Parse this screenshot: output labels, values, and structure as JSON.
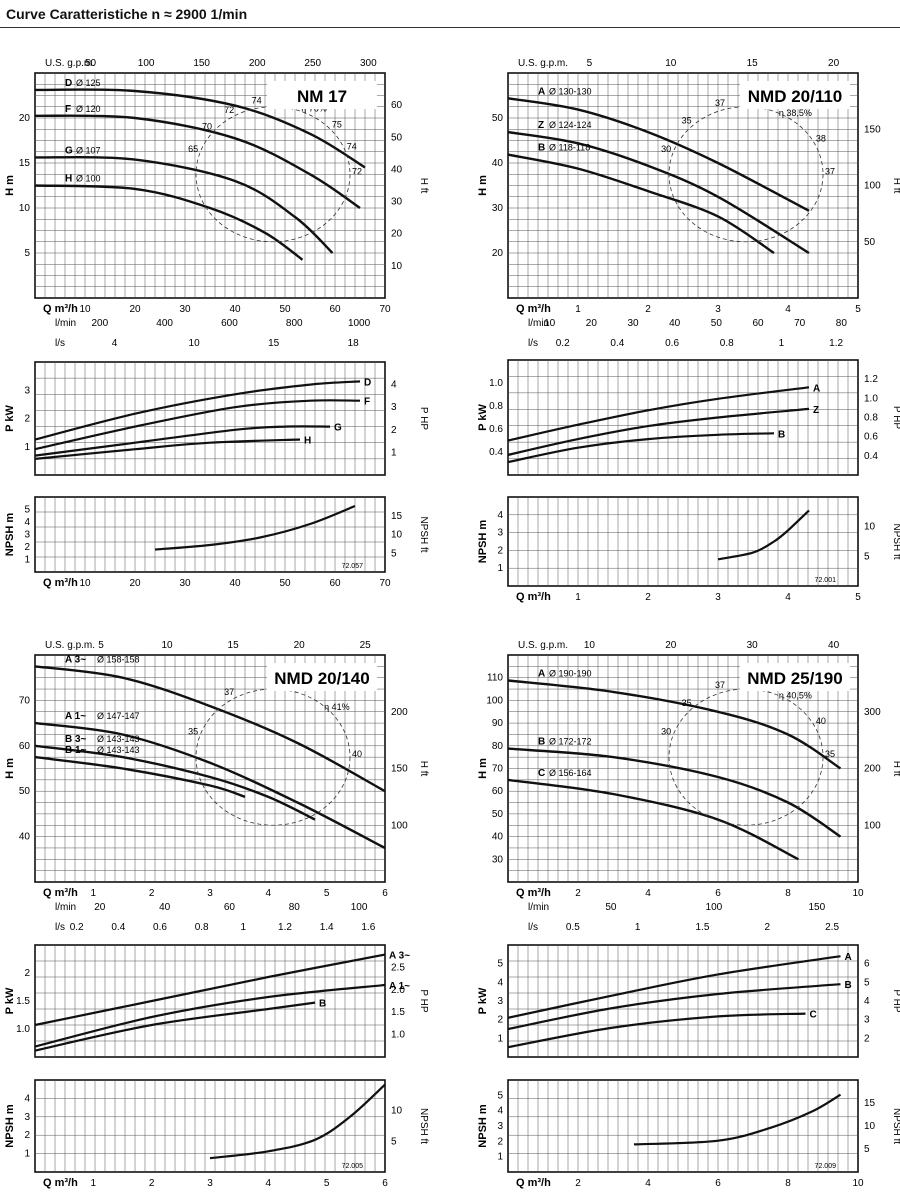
{
  "page": {
    "title": "Curve Caratteristiche n ≈ 2900 1/min"
  },
  "chart_data": [
    {
      "type": "line",
      "model": "NM 17",
      "ref_code": "72.057",
      "units": {
        "q": "Q m³/h",
        "gpm": "U.S. g.p.m.",
        "lmin": "l/min",
        "ls": "l/s",
        "h": "H m",
        "hft": "H ft",
        "p": "P kW",
        "php": "P HP",
        "npsh": "NPSH m",
        "npshft": "NPSH ft"
      },
      "q_ticks": [
        "10",
        "20",
        "30",
        "40",
        "50",
        "60",
        "70"
      ],
      "gpm_ticks": [
        "50",
        "100",
        "150",
        "200",
        "250",
        "300"
      ],
      "lmin_ticks": [
        "200",
        "400",
        "600",
        "800",
        "1000"
      ],
      "ls_ticks": [
        "4",
        "10",
        "15",
        "18"
      ],
      "h_ticks": [
        "5",
        "10",
        "15",
        "20"
      ],
      "hft_ticks": [
        "10",
        "20",
        "30",
        "40",
        "50",
        "60"
      ],
      "p_ticks": [
        "1",
        "2",
        "3"
      ],
      "php_ticks": [
        "1",
        "2",
        "3",
        "4"
      ],
      "npsh_ticks": [
        "1",
        "2",
        "3",
        "4",
        "5"
      ],
      "npshft_ticks": [
        "5",
        "10",
        "15"
      ],
      "xlim": [
        0,
        70
      ],
      "h_ylim": [
        0,
        20
      ],
      "p_ylim": [
        0,
        3.5
      ],
      "npsh_ylim": [
        0,
        5
      ],
      "head_series": [
        {
          "name": "D",
          "label": "Ø 125",
          "points": [
            [
              0,
              18.5
            ],
            [
              20,
              18.4
            ],
            [
              40,
              17.1
            ],
            [
              55,
              14.6
            ],
            [
              66,
              11.6
            ]
          ]
        },
        {
          "name": "F",
          "label": "Ø 120",
          "points": [
            [
              0,
              16.2
            ],
            [
              20,
              16.0
            ],
            [
              40,
              14.2
            ],
            [
              55,
              11.0
            ],
            [
              65,
              8
            ]
          ]
        },
        {
          "name": "G",
          "label": "Ø 107",
          "points": [
            [
              0,
              12.5
            ],
            [
              20,
              12.3
            ],
            [
              40,
              10.4
            ],
            [
              52,
              7.2
            ],
            [
              59.5,
              4
            ]
          ]
        },
        {
          "name": "H",
          "label": "Ø 100",
          "points": [
            [
              0,
              10
            ],
            [
              20,
              9.7
            ],
            [
              35,
              8.0
            ],
            [
              46,
              5.8
            ],
            [
              53.5,
              3.4
            ]
          ]
        }
      ],
      "efficiency_labels": [
        "65",
        "70",
        "72",
        "74",
        "75",
        "η 76%",
        "75",
        "74",
        "72"
      ],
      "power_series": [
        {
          "name": "D",
          "points": [
            [
              0,
              1.1
            ],
            [
              20,
              1.9
            ],
            [
              40,
              2.5
            ],
            [
              55,
              2.8
            ],
            [
              65,
              2.9
            ]
          ]
        },
        {
          "name": "F",
          "points": [
            [
              0,
              0.8
            ],
            [
              20,
              1.5
            ],
            [
              40,
              2.1
            ],
            [
              55,
              2.3
            ],
            [
              65,
              2.3
            ]
          ]
        },
        {
          "name": "G",
          "points": [
            [
              0,
              0.6
            ],
            [
              20,
              1.0
            ],
            [
              40,
              1.4
            ],
            [
              50,
              1.5
            ],
            [
              59,
              1.5
            ]
          ]
        },
        {
          "name": "H",
          "points": [
            [
              0,
              0.5
            ],
            [
              20,
              0.8
            ],
            [
              35,
              1.0
            ],
            [
              53,
              1.1
            ]
          ]
        }
      ],
      "npsh_series": [
        {
          "name": "",
          "points": [
            [
              24,
              1.5
            ],
            [
              35,
              1.8
            ],
            [
              45,
              2.3
            ],
            [
              55,
              3.2
            ],
            [
              64,
              4.4
            ]
          ]
        }
      ]
    },
    {
      "type": "line",
      "model": "NMD 20/110",
      "ref_code": "72.001",
      "units": {
        "q": "Q m³/h",
        "gpm": "U.S. g.p.m.",
        "lmin": "l/min",
        "ls": "l/s",
        "h": "H m",
        "hft": "H ft",
        "p": "P kW",
        "php": "P HP",
        "npsh": "NPSH m",
        "npshft": "NPSH ft"
      },
      "q_ticks": [
        "1",
        "2",
        "3",
        "4",
        "5"
      ],
      "gpm_ticks": [
        "5",
        "10",
        "15",
        "20"
      ],
      "lmin_ticks": [
        "10",
        "20",
        "30",
        "40",
        "50",
        "60",
        "70",
        "80"
      ],
      "ls_ticks": [
        "0.2",
        "0.4",
        "0.6",
        "0.8",
        "1",
        "1.2"
      ],
      "h_ticks": [
        "20",
        "30",
        "40",
        "50"
      ],
      "hft_ticks": [
        "50",
        "100",
        "150"
      ],
      "p_ticks": [
        "0.4",
        "0.6",
        "0.8",
        "1.0"
      ],
      "php_ticks": [
        "0.4",
        "0.6",
        "0.8",
        "1.0",
        "1.2"
      ],
      "npsh_ticks": [
        "1",
        "2",
        "3",
        "4"
      ],
      "npshft_ticks": [
        "5",
        "10"
      ],
      "xlim": [
        0,
        5
      ],
      "h_ylim": [
        10,
        50
      ],
      "p_ylim": [
        0.2,
        1.0
      ],
      "npsh_ylim": [
        0,
        4
      ],
      "head_series": [
        {
          "name": "A",
          "label": "Ø 130-130",
          "points": [
            [
              0,
              45.5
            ],
            [
              1,
              43.5
            ],
            [
              2,
              39.5
            ],
            [
              3,
              34
            ],
            [
              4.3,
              25.5
            ]
          ]
        },
        {
          "name": "Z",
          "label": "Ø 124-124",
          "points": [
            [
              0,
              39.5
            ],
            [
              1,
              37.5
            ],
            [
              2,
              33.5
            ],
            [
              3,
              28
            ],
            [
              4.3,
              18
            ]
          ]
        },
        {
          "name": "B",
          "label": "Ø 118-118",
          "points": [
            [
              0,
              35.5
            ],
            [
              1,
              33
            ],
            [
              2,
              29
            ],
            [
              3,
              24.5
            ],
            [
              3.8,
              18
            ]
          ]
        }
      ],
      "efficiency_labels": [
        "30",
        "35",
        "37",
        "38",
        "η 38,5%",
        "38",
        "37"
      ],
      "power_series": [
        {
          "name": "A",
          "points": [
            [
              0,
              0.44
            ],
            [
              1,
              0.55
            ],
            [
              2,
              0.65
            ],
            [
              3,
              0.73
            ],
            [
              4.3,
              0.81
            ]
          ]
        },
        {
          "name": "Z",
          "points": [
            [
              0,
              0.34
            ],
            [
              1,
              0.45
            ],
            [
              2,
              0.54
            ],
            [
              3,
              0.6
            ],
            [
              4.3,
              0.66
            ]
          ]
        },
        {
          "name": "B",
          "points": [
            [
              0,
              0.29
            ],
            [
              1,
              0.39
            ],
            [
              2,
              0.45
            ],
            [
              3,
              0.48
            ],
            [
              3.8,
              0.49
            ]
          ]
        }
      ],
      "npsh_series": [
        {
          "name": "",
          "points": [
            [
              3,
              1.2
            ],
            [
              3.5,
              1.5
            ],
            [
              3.8,
              2.0
            ],
            [
              4.0,
              2.5
            ],
            [
              4.3,
              3.4
            ]
          ]
        }
      ]
    },
    {
      "type": "line",
      "model": "NMD 20/140",
      "ref_code": "72.005",
      "units": {
        "q": "Q m³/h",
        "gpm": "U.S. g.p.m.",
        "lmin": "l/min",
        "ls": "l/s",
        "h": "H m",
        "hft": "H ft",
        "p": "P kW",
        "php": "P HP",
        "npsh": "NPSH m",
        "npshft": "NPSH ft"
      },
      "q_ticks": [
        "1",
        "2",
        "3",
        "4",
        "5",
        "6"
      ],
      "gpm_ticks": [
        "5",
        "10",
        "15",
        "20",
        "25"
      ],
      "lmin_ticks": [
        "20",
        "40",
        "60",
        "80",
        "100"
      ],
      "ls_ticks": [
        "0.2",
        "0.4",
        "0.6",
        "0.8",
        "1",
        "1.2",
        "1.4",
        "1.6"
      ],
      "h_ticks": [
        "40",
        "50",
        "60",
        "70"
      ],
      "hft_ticks": [
        "100",
        "150",
        "200"
      ],
      "p_ticks": [
        "1.0",
        "1.5",
        "2"
      ],
      "php_ticks": [
        "1.0",
        "1.5",
        "2.0",
        "2.5"
      ],
      "npsh_ticks": [
        "1",
        "2",
        "3",
        "4"
      ],
      "npshft_ticks": [
        "5",
        "10"
      ],
      "xlim": [
        0,
        6
      ],
      "h_ylim": [
        30,
        70
      ],
      "p_ylim": [
        0.6,
        2.0
      ],
      "npsh_ylim": [
        0,
        4
      ],
      "head_series": [
        {
          "name": "A 3~",
          "label": "Ø 158-158",
          "points": [
            [
              0,
              68
            ],
            [
              1.5,
              66
            ],
            [
              3,
              61
            ],
            [
              4.5,
              54.5
            ],
            [
              6,
              46
            ]
          ]
        },
        {
          "name": "A 1~",
          "label": "Ø 147-147",
          "points": [
            [
              0,
              58
            ],
            [
              1.5,
              56
            ],
            [
              3,
              51
            ],
            [
              4.5,
              44
            ],
            [
              6,
              36
            ]
          ]
        },
        {
          "name": "B 3~",
          "label": "Ø 143-143",
          "points": [
            [
              0,
              54
            ],
            [
              1.5,
              52
            ],
            [
              3,
              48.5
            ],
            [
              4,
              45
            ],
            [
              4.8,
              41
            ]
          ]
        },
        {
          "name": "B 1~",
          "label": "Ø 143-143",
          "points": [
            [
              0,
              52
            ],
            [
              1.5,
              50
            ],
            [
              3,
              47
            ],
            [
              3.6,
              45
            ]
          ]
        }
      ],
      "efficiency_labels": [
        "35",
        "37",
        "40",
        "η 41%",
        "40"
      ],
      "power_series": [
        {
          "name": "A 3~",
          "points": [
            [
              0,
              1.0
            ],
            [
              2,
              1.3
            ],
            [
              4,
              1.6
            ],
            [
              6,
              1.88
            ]
          ]
        },
        {
          "name": "A 1~",
          "points": [
            [
              0,
              0.73
            ],
            [
              2,
              1.1
            ],
            [
              4,
              1.35
            ],
            [
              6,
              1.5
            ]
          ]
        },
        {
          "name": "B",
          "points": [
            [
              0,
              0.68
            ],
            [
              2,
              1.0
            ],
            [
              4,
              1.2
            ],
            [
              4.8,
              1.28
            ]
          ]
        }
      ],
      "npsh_series": [
        {
          "name": "",
          "points": [
            [
              3,
              0.6
            ],
            [
              4,
              0.9
            ],
            [
              4.8,
              1.4
            ],
            [
              5.4,
              2.4
            ],
            [
              6,
              3.8
            ]
          ]
        }
      ]
    },
    {
      "type": "line",
      "model": "NMD 25/190",
      "ref_code": "72.009",
      "units": {
        "q": "Q m³/h",
        "gpm": "U.S. g.p.m.",
        "lmin": "l/min",
        "ls": "l/s",
        "h": "H m",
        "hft": "H ft",
        "p": "P kW",
        "php": "P HP",
        "npsh": "NPSH m",
        "npshft": "NPSH ft"
      },
      "q_ticks": [
        "2",
        "4",
        "6",
        "8",
        "10"
      ],
      "gpm_ticks": [
        "10",
        "20",
        "30",
        "40"
      ],
      "lmin_ticks": [
        "50",
        "100",
        "150"
      ],
      "ls_ticks": [
        "0.5",
        "1",
        "1.5",
        "2",
        "2.5"
      ],
      "h_ticks": [
        "30",
        "40",
        "50",
        "60",
        "70",
        "80",
        "90",
        "100",
        "110"
      ],
      "hft_ticks": [
        "100",
        "200",
        "300"
      ],
      "p_ticks": [
        "1",
        "2",
        "3",
        "4",
        "5"
      ],
      "php_ticks": [
        "2",
        "3",
        "4",
        "5",
        "6"
      ],
      "npsh_ticks": [
        "1",
        "2",
        "3",
        "4",
        "5"
      ],
      "npshft_ticks": [
        "5",
        "10",
        "15"
      ],
      "xlim": [
        0,
        10
      ],
      "h_ylim": [
        30,
        110
      ],
      "p_ylim": [
        1,
        5
      ],
      "npsh_ylim": [
        0,
        5
      ],
      "head_series": [
        {
          "name": "A",
          "label": "Ø 190-190",
          "points": [
            [
              0,
              101
            ],
            [
              3,
              97
            ],
            [
              6,
              90
            ],
            [
              8,
              82
            ],
            [
              9.5,
              70
            ]
          ]
        },
        {
          "name": "B",
          "label": "Ø 172-172",
          "points": [
            [
              0,
              77
            ],
            [
              3,
              74
            ],
            [
              6,
              67
            ],
            [
              8,
              58
            ],
            [
              9.5,
              46
            ]
          ]
        },
        {
          "name": "C",
          "label": "Ø 156-164",
          "points": [
            [
              0,
              66
            ],
            [
              3,
              61
            ],
            [
              6,
              52
            ],
            [
              8.3,
              38
            ]
          ]
        }
      ],
      "efficiency_labels": [
        "30",
        "35",
        "37",
        "40",
        "η 40,5%",
        "40",
        "35"
      ],
      "power_series": [
        {
          "name": "A",
          "points": [
            [
              0,
              2.4
            ],
            [
              3,
              3.2
            ],
            [
              6,
              3.95
            ],
            [
              9.5,
              4.6
            ]
          ]
        },
        {
          "name": "B",
          "points": [
            [
              0,
              2.0
            ],
            [
              3,
              2.75
            ],
            [
              6,
              3.25
            ],
            [
              9.5,
              3.6
            ]
          ]
        },
        {
          "name": "C",
          "points": [
            [
              0,
              1.35
            ],
            [
              3,
              2.05
            ],
            [
              6,
              2.45
            ],
            [
              8.5,
              2.55
            ]
          ]
        }
      ],
      "npsh_series": [
        {
          "name": "",
          "points": [
            [
              3.6,
              1.5
            ],
            [
              6,
              1.7
            ],
            [
              7.5,
              2.4
            ],
            [
              8.7,
              3.3
            ],
            [
              9.5,
              4.2
            ]
          ]
        }
      ]
    }
  ]
}
